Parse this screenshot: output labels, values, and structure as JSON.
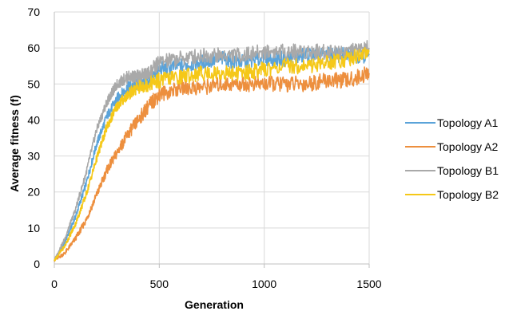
{
  "chart_data": {
    "type": "line",
    "xlabel": "Generation",
    "ylabel": "Average fitness (f)",
    "xlim": [
      0,
      1500
    ],
    "ylim": [
      0,
      70
    ],
    "x_ticks": [
      "0",
      "500",
      "1000",
      "1500"
    ],
    "y_ticks": [
      "0",
      "10",
      "20",
      "30",
      "40",
      "50",
      "60",
      "70"
    ],
    "grid": true,
    "legend_position": "right",
    "x": [
      0,
      50,
      100,
      150,
      200,
      250,
      300,
      350,
      400,
      450,
      500,
      600,
      700,
      800,
      900,
      1000,
      1100,
      1200,
      1300,
      1400,
      1500
    ],
    "series": [
      {
        "name": "Topology A1",
        "color": "#5ba3d9",
        "values": [
          1,
          6,
          13,
          22,
          33,
          41,
          46,
          49,
          50,
          51,
          54,
          55,
          56,
          57,
          56,
          57,
          57,
          58,
          58,
          58,
          58
        ]
      },
      {
        "name": "Topology A2",
        "color": "#ed8f3e",
        "values": [
          1,
          3,
          7,
          12,
          19,
          26,
          31,
          36,
          40,
          44,
          47,
          49,
          49,
          50,
          50,
          50,
          50,
          50,
          51,
          51,
          53
        ]
      },
      {
        "name": "Topology B1",
        "color": "#a9a9a9",
        "values": [
          1,
          7,
          15,
          25,
          37,
          45,
          50,
          52,
          52,
          53,
          56,
          57,
          58,
          58,
          58,
          59,
          59,
          59,
          59,
          59,
          60
        ]
      },
      {
        "name": "Topology B2",
        "color": "#f5c818",
        "values": [
          1,
          5,
          11,
          19,
          29,
          38,
          44,
          47,
          49,
          50,
          51,
          52,
          53,
          53,
          53,
          54,
          55,
          55,
          56,
          57,
          59
        ]
      }
    ]
  }
}
